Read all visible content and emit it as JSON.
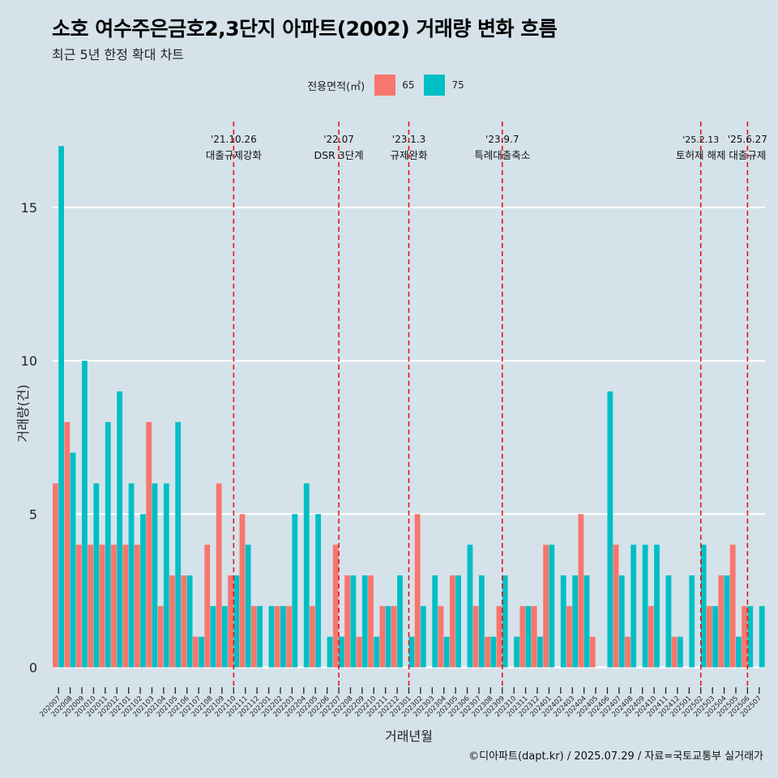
{
  "title": "소호 여수주은금호2,3단지 아파트(2002) 거래량 변화 흐름",
  "subtitle": "최근 5년 한정 확대 차트",
  "caption": "©디아파트(dapt.kr) / 2025.07.29 / 자료=국토교통부 실거래가",
  "legend": {
    "title": "전용면적(㎡)",
    "items": [
      {
        "label": "65",
        "color": "#f8766d"
      },
      {
        "label": "75",
        "color": "#00bfc4"
      }
    ]
  },
  "chart_data": {
    "type": "bar",
    "title": "소호 여수주은금호2,3단지 아파트(2002) 거래량 변화 흐름",
    "xlabel": "거래년월",
    "ylabel": "거래량(건)",
    "ylim": [
      -0.7,
      17.8
    ],
    "yticks": [
      0,
      5,
      10,
      15
    ],
    "categories": [
      "202007",
      "202008",
      "202009",
      "202010",
      "202011",
      "202012",
      "202101",
      "202102",
      "202103",
      "202104",
      "202105",
      "202106",
      "202107",
      "202108",
      "202109",
      "202110",
      "202111",
      "202112",
      "202201",
      "202202",
      "202203",
      "202204",
      "202205",
      "202206",
      "202207",
      "202208",
      "202209",
      "202210",
      "202211",
      "202212",
      "202301",
      "202302",
      "202303",
      "202304",
      "202305",
      "202306",
      "202307",
      "202308",
      "202309",
      "202310",
      "202311",
      "202312",
      "202401",
      "202402",
      "202403",
      "202404",
      "202405",
      "202406",
      "202407",
      "202408",
      "202409",
      "202410",
      "202411",
      "202412",
      "202501",
      "202502",
      "202503",
      "202504",
      "202505",
      "202506",
      "202507"
    ],
    "series": [
      {
        "name": "65",
        "color": "#f8766d",
        "values": [
          6,
          8,
          4,
          4,
          4,
          4,
          4,
          4,
          8,
          2,
          3,
          3,
          1,
          4,
          6,
          3,
          5,
          2,
          0,
          2,
          2,
          0,
          2,
          0,
          4,
          3,
          1,
          3,
          2,
          2,
          0,
          5,
          0,
          2,
          3,
          0,
          2,
          1,
          2,
          0,
          2,
          2,
          4,
          0,
          2,
          5,
          1,
          0,
          4,
          1,
          0,
          2,
          0,
          1,
          0,
          0,
          2,
          3,
          4,
          2,
          0
        ]
      },
      {
        "name": "75",
        "color": "#00bfc4",
        "values": [
          17,
          7,
          10,
          6,
          8,
          9,
          6,
          5,
          6,
          6,
          8,
          3,
          1,
          2,
          2,
          3,
          4,
          2,
          2,
          2,
          5,
          6,
          5,
          1,
          1,
          3,
          3,
          1,
          2,
          3,
          1,
          2,
          3,
          1,
          3,
          4,
          3,
          1,
          3,
          1,
          2,
          1,
          4,
          3,
          3,
          3,
          0,
          9,
          3,
          4,
          4,
          4,
          3,
          1,
          3,
          4,
          2,
          3,
          1,
          2,
          2
        ]
      }
    ],
    "events": [
      {
        "date": "'21.10.26",
        "label": "대출규제강화",
        "at": 15.5
      },
      {
        "date": "'22.07",
        "label": "DSR 3단계",
        "at": 24.5
      },
      {
        "date": "'23.1.3",
        "label": "규제완화",
        "at": 30.5
      },
      {
        "date": "'23.9.7",
        "label": "특례대출축소",
        "at": 38.5
      },
      {
        "date": "'25.2.13",
        "label": "토허제 해제",
        "at": 55.5
      },
      {
        "date": "'25.6.27",
        "label": "대출규제",
        "at": 59.5
      }
    ]
  }
}
